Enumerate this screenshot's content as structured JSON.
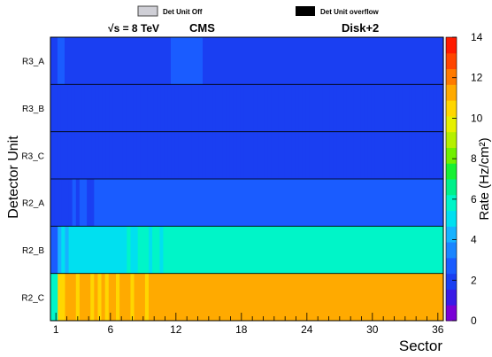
{
  "legend": {
    "off_label": "Det Unit Off",
    "overflow_label": "Det Unit overflow",
    "off_color": "#cfcfd6",
    "overflow_color": "#000000"
  },
  "header": {
    "energy_prefix": "√s = 8 TeV",
    "experiment": "CMS",
    "disk": "Disk+2"
  },
  "chart_data": {
    "type": "heatmap",
    "title": "",
    "xlabel": "Sector",
    "ylabel": "Detector Unit",
    "zlabel": "Rate (Hz/cm²)",
    "xlim": [
      0.5,
      36.5
    ],
    "zlim": [
      0,
      14
    ],
    "x_ticks": [
      1,
      6,
      12,
      18,
      24,
      30,
      36
    ],
    "z_ticks": [
      0,
      2,
      4,
      6,
      8,
      10,
      12,
      14
    ],
    "rows": [
      "R3_A",
      "R3_B",
      "R3_C",
      "R2_A",
      "R2_B",
      "R2_C"
    ],
    "columns_per_sector": 3,
    "values": [
      [
        2.1,
        2.1,
        2.4,
        2.5,
        2.3,
        2.2,
        2.2,
        2.3,
        2.2,
        2.2,
        2.2,
        2.2,
        2.2,
        2.2,
        2.2,
        2.2,
        2.2,
        2.2,
        2.2,
        2.2,
        2.2,
        2.2,
        2.2,
        2.2,
        2.2,
        2.2,
        2.2,
        2.2,
        2.2,
        2.2,
        2.2,
        2.2,
        2.2,
        2.2,
        2.6,
        2.6,
        2.6,
        2.6,
        2.6,
        2.6,
        2.6,
        2.6,
        2.6,
        2.2,
        2.2,
        2.2,
        2.2,
        2.2,
        2.2,
        2.2,
        2.2,
        2.2,
        2.2,
        2.2,
        2.2,
        2.2,
        2.2,
        2.2,
        2.2,
        2.2,
        2.2,
        2.2,
        2.2,
        2.2,
        2.2,
        2.2,
        2.2,
        2.2,
        2.2,
        2.2,
        2.2,
        2.2,
        2.2,
        2.2,
        2.2,
        2.2,
        2.2,
        2.2,
        2.2,
        2.2,
        2.2,
        2.2,
        2.2,
        2.2,
        2.2,
        2.2,
        2.2,
        2.2,
        2.2,
        2.2,
        2.2,
        2.2,
        2.2,
        2.2,
        2.2,
        2.2,
        2.2,
        2.2,
        2.2,
        2.2,
        2.2,
        2.2,
        2.2,
        2.2,
        2.2,
        2.2,
        2.2,
        2.2,
        2.2,
        2.2,
        2.2
      ],
      [
        1.9,
        1.8,
        2.2,
        1.6,
        1.7,
        1.8,
        1.6,
        1.8,
        1.7,
        1.9,
        2.0,
        2.0,
        2.0,
        2.0,
        2.0,
        2.0,
        2.0,
        2.0,
        2.0,
        2.0,
        2.0,
        2.0,
        2.0,
        2.0,
        2.0,
        2.0,
        2.0,
        2.0,
        2.0,
        2.0,
        1.9,
        1.9,
        1.9,
        1.9,
        2.0,
        2.0,
        2.0,
        2.0,
        2.0,
        2.0,
        2.0,
        2.0,
        2.0,
        2.0,
        2.0,
        2.0,
        2.0,
        2.0,
        2.0,
        2.0,
        2.0,
        2.0,
        2.0,
        2.0,
        1.8,
        1.8,
        1.8,
        2.0,
        2.0,
        2.0,
        2.0,
        2.0,
        2.0,
        2.0,
        2.0,
        2.0,
        2.0,
        2.0,
        2.0,
        2.0,
        2.0,
        2.0,
        2.0,
        2.0,
        2.0,
        2.0,
        2.0,
        2.0,
        2.0,
        2.0,
        2.0,
        2.0,
        2.0,
        2.0,
        2.0,
        2.0,
        2.0,
        2.0,
        2.0,
        2.0,
        2.0,
        2.0,
        2.0,
        2.0,
        2.0,
        2.0,
        2.0,
        2.0,
        2.0,
        2.0,
        2.0,
        2.0,
        2.0,
        2.0,
        2.0,
        2.0,
        2.0,
        2.0,
        2.0,
        2.0,
        2.0,
        2.0,
        2.0,
        2.0
      ],
      [
        2.0,
        2.1,
        2.0,
        1.8,
        1.9,
        2.1,
        2.0,
        2.1,
        1.8,
        2.0,
        2.0,
        2.0,
        2.0,
        2.0,
        2.0,
        2.0,
        2.0,
        2.0,
        2.0,
        2.0,
        2.0,
        2.0,
        2.0,
        2.0,
        2.0,
        2.0,
        2.0,
        2.0,
        2.0,
        2.0,
        2.0,
        2.0,
        2.0,
        2.0,
        2.0,
        2.0,
        2.0,
        2.0,
        2.0,
        2.0,
        2.0,
        2.0,
        2.0,
        2.0,
        2.0,
        2.0,
        2.0,
        2.0,
        2.0,
        2.0,
        2.0,
        2.0,
        2.0,
        2.0,
        2.0,
        2.0,
        2.0,
        2.0,
        2.0,
        2.0,
        2.0,
        2.0,
        2.0,
        2.0,
        2.0,
        2.0,
        2.0,
        2.0,
        2.0,
        2.0,
        2.0,
        2.0,
        2.0,
        2.0,
        2.0,
        2.0,
        2.0,
        2.0,
        2.0,
        2.0,
        2.0,
        2.0,
        2.0,
        2.0,
        2.0,
        2.0,
        2.0,
        2.0,
        2.0,
        2.0,
        2.0,
        2.0,
        2.0,
        2.0,
        2.0,
        2.0,
        2.0,
        2.0,
        2.0,
        2.0,
        2.0,
        2.0,
        2.0,
        2.0,
        2.0,
        2.0,
        2.0,
        2.0,
        2.0,
        2.0,
        2.0,
        2.0,
        2.0,
        2.0
      ],
      [
        2.0,
        2.1,
        2.0,
        2.1,
        2.0,
        2.0,
        2.6,
        2.1,
        2.7,
        2.4,
        2.1,
        2.3,
        2.6,
        2.6,
        2.6,
        2.5,
        2.5,
        2.5,
        2.6,
        2.6,
        2.6,
        2.5,
        2.5,
        2.5,
        2.6,
        2.6,
        2.6,
        2.5,
        2.5,
        2.5,
        2.6,
        2.6,
        2.6,
        2.5,
        2.5,
        2.5,
        2.6,
        2.6,
        2.6,
        2.5,
        2.5,
        2.5,
        2.6,
        2.6,
        2.6,
        2.5,
        2.5,
        2.5,
        2.6,
        2.6,
        2.6,
        2.5,
        2.5,
        2.5,
        2.6,
        2.6,
        2.6,
        2.5,
        2.5,
        2.5,
        2.6,
        2.6,
        2.6,
        2.5,
        2.5,
        2.5,
        2.6,
        2.6,
        2.6,
        2.5,
        2.5,
        2.5,
        2.6,
        2.6,
        2.6,
        2.5,
        2.5,
        2.5,
        2.6,
        2.6,
        2.6,
        2.5,
        2.5,
        2.5,
        2.6,
        2.6,
        2.6,
        2.5,
        2.5,
        2.5,
        2.6,
        2.6,
        2.6,
        2.5,
        2.5,
        2.5,
        2.6,
        2.6,
        2.6,
        2.5,
        2.5,
        2.5,
        2.6,
        2.6,
        2.6,
        2.5,
        2.5,
        2.5
      ],
      [
        2.6,
        2.6,
        4.6,
        4.8,
        4.3,
        4.9,
        5.0,
        5.1,
        5.0,
        5.3,
        5.1,
        5.2,
        5.4,
        5.0,
        5.1,
        5.1,
        5.2,
        5.3,
        5.1,
        5.3,
        5.4,
        5.5,
        5.3,
        5.3,
        5.6,
        5.5,
        5.6,
        5.4,
        5.5,
        5.5,
        5.4,
        5.5,
        5.5,
        5.5,
        5.5,
        5.5,
        5.5,
        5.5,
        5.5,
        5.5,
        5.5,
        5.5,
        5.5,
        5.5,
        5.5,
        5.5,
        5.5,
        5.5,
        5.5,
        5.5,
        5.5,
        5.5,
        5.5,
        5.5,
        5.5,
        5.5,
        5.5,
        5.5,
        5.5,
        5.5,
        5.5,
        5.5,
        5.5,
        5.5,
        5.5,
        5.5,
        5.5,
        5.5,
        5.5,
        5.5,
        5.5,
        5.5,
        5.5,
        5.5,
        5.5,
        5.5,
        5.5,
        5.5,
        5.5,
        5.5,
        5.5,
        5.5,
        5.5,
        5.5,
        5.5,
        5.5,
        5.5,
        5.5,
        5.5,
        5.5,
        5.5,
        5.5,
        5.5,
        5.5,
        5.5,
        5.5,
        5.5,
        5.5,
        5.5,
        5.5,
        5.5,
        5.5,
        5.5,
        5.5,
        5.5,
        5.5,
        5.5,
        5.5
      ],
      [
        5.8,
        5.9,
        10.4,
        10.6,
        11.2,
        10.9,
        11.0,
        10.5,
        11.4,
        10.9,
        11.2,
        10.6,
        11.6,
        10.8,
        11.0,
        10.7,
        11.0,
        11.3,
        10.6,
        11.0,
        11.1,
        11.3,
        10.8,
        11.6,
        10.9,
        11.2,
        10.5,
        11.0,
        11.0,
        11.0,
        11.0,
        11.0,
        11.0,
        11.0,
        11.0,
        11.0,
        11.0,
        11.0,
        11.0,
        11.0,
        11.0,
        11.0,
        11.0,
        11.0,
        11.0,
        11.0,
        11.0,
        11.0,
        11.0,
        11.0,
        11.0,
        11.0,
        11.0,
        11.0,
        11.0,
        11.0,
        11.0,
        11.0,
        11.0,
        11.0,
        11.0,
        11.0,
        11.0,
        11.0,
        11.0,
        11.0,
        11.0,
        11.0,
        11.0,
        11.0,
        11.0,
        11.0,
        11.0,
        11.0,
        11.0,
        11.0,
        11.0,
        11.0,
        11.0,
        11.0,
        11.0,
        11.0,
        11.0,
        11.0,
        11.0,
        11.0,
        11.0,
        11.0,
        11.0,
        11.0,
        11.0,
        11.0,
        11.0,
        11.0,
        11.0,
        11.0,
        11.0,
        11.0,
        11.0,
        11.0,
        11.0,
        11.0,
        11.0,
        11.0,
        11.0,
        11.0,
        11.0,
        11.0
      ]
    ]
  }
}
